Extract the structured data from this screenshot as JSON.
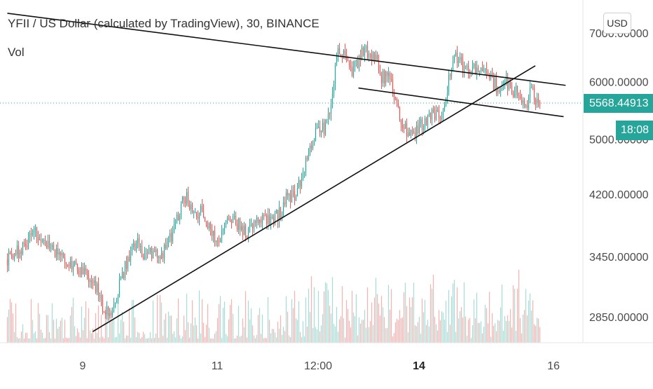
{
  "colors": {
    "up": "#26a69a",
    "down": "#ef5350",
    "up_vol": "#a8dcd5",
    "down_vol": "#f7b3b1",
    "axis_text": "#4a4a4a",
    "background": "#ffffff"
  },
  "chart_data": {
    "type": "candlestick",
    "title": "YFII / US Dollar (calculated by TradingView), 30, BINANCE",
    "indicator_label": "Vol",
    "currency": "USD",
    "y_scale": "log",
    "ylim": [
      2580,
      7700
    ],
    "y_ticks": [
      {
        "value": 7000,
        "label": "7000.00000"
      },
      {
        "value": 6000,
        "label": "6000.00000"
      },
      {
        "value": 5000,
        "label": "5000.00000"
      },
      {
        "value": 4200,
        "label": "4200.00000"
      },
      {
        "value": 3450,
        "label": "3450.00000"
      },
      {
        "value": 2850,
        "label": "2850.00000"
      }
    ],
    "x_ticks": [
      {
        "t": 0,
        "label": "9",
        "bold": false
      },
      {
        "t": 2,
        "label": "11",
        "bold": false
      },
      {
        "t": 3.5,
        "label": "12:00",
        "bold": false
      },
      {
        "t": 5,
        "label": "14",
        "bold": true
      },
      {
        "t": 7,
        "label": "16",
        "bold": false
      }
    ],
    "xlim": [
      -1.12,
      7.35
    ],
    "last_price": 5568.44913,
    "last_price_label": "5568.44913",
    "countdown_label": "18:08",
    "path": [
      [
        -1.12,
        3420
      ],
      [
        -0.85,
        3560
      ],
      [
        -0.7,
        3740
      ],
      [
        -0.45,
        3520
      ],
      [
        -0.2,
        3390
      ],
      [
        0.05,
        3290
      ],
      [
        0.2,
        3130
      ],
      [
        0.3,
        2940
      ],
      [
        0.42,
        2830
      ],
      [
        0.55,
        3180
      ],
      [
        0.7,
        3480
      ],
      [
        0.8,
        3620
      ],
      [
        0.95,
        3430
      ],
      [
        1.05,
        3530
      ],
      [
        1.2,
        3480
      ],
      [
        1.35,
        3740
      ],
      [
        1.48,
        4080
      ],
      [
        1.55,
        4150
      ],
      [
        1.65,
        3930
      ],
      [
        1.78,
        4000
      ],
      [
        1.9,
        3760
      ],
      [
        1.98,
        3620
      ],
      [
        2.1,
        3800
      ],
      [
        2.22,
        3920
      ],
      [
        2.35,
        3770
      ],
      [
        2.45,
        3730
      ],
      [
        2.62,
        3900
      ],
      [
        2.8,
        3840
      ],
      [
        2.95,
        3980
      ],
      [
        3.05,
        4200
      ],
      [
        3.15,
        4150
      ],
      [
        3.25,
        4420
      ],
      [
        3.35,
        4820
      ],
      [
        3.45,
        5080
      ],
      [
        3.52,
        5150
      ],
      [
        3.62,
        5200
      ],
      [
        3.7,
        5580
      ],
      [
        3.75,
        6150
      ],
      [
        3.8,
        6600
      ],
      [
        3.92,
        6460
      ],
      [
        4.0,
        6180
      ],
      [
        4.1,
        6420
      ],
      [
        4.18,
        6680
      ],
      [
        4.28,
        6520
      ],
      [
        4.38,
        6380
      ],
      [
        4.45,
        6080
      ],
      [
        4.55,
        6150
      ],
      [
        4.62,
        5820
      ],
      [
        4.72,
        5380
      ],
      [
        4.82,
        5100
      ],
      [
        4.9,
        5060
      ],
      [
        5.0,
        5220
      ],
      [
        5.12,
        5350
      ],
      [
        5.22,
        5400
      ],
      [
        5.32,
        5440
      ],
      [
        5.4,
        5620
      ],
      [
        5.47,
        6280
      ],
      [
        5.55,
        6480
      ],
      [
        5.62,
        6330
      ],
      [
        5.72,
        6250
      ],
      [
        5.8,
        6300
      ],
      [
        5.88,
        6100
      ],
      [
        5.95,
        6250
      ],
      [
        6.05,
        6120
      ],
      [
        6.12,
        5960
      ],
      [
        6.2,
        5850
      ],
      [
        6.28,
        6050
      ],
      [
        6.35,
        5920
      ],
      [
        6.42,
        5820
      ],
      [
        6.52,
        5700
      ],
      [
        6.6,
        5580
      ],
      [
        6.68,
        5900
      ],
      [
        6.76,
        5620
      ],
      [
        6.81,
        5568
      ]
    ],
    "trendlines": [
      {
        "name": "upper-descending",
        "from": [
          -1.12,
          7450
        ],
        "to": [
          7.18,
          5930
        ]
      },
      {
        "name": "ascending-support",
        "from": [
          0.15,
          2720
        ],
        "to": [
          6.73,
          6310
        ]
      },
      {
        "name": "lower-descending",
        "from": [
          4.1,
          5880
        ],
        "to": [
          7.15,
          5370
        ]
      }
    ]
  }
}
